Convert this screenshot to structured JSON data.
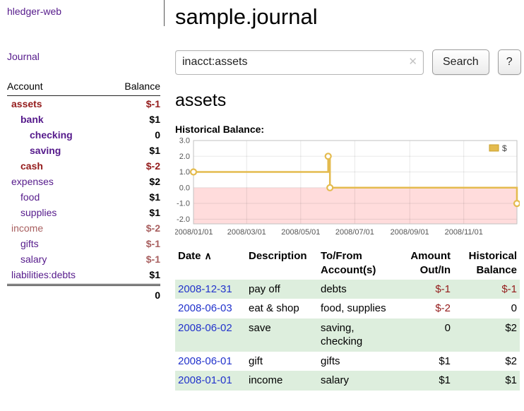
{
  "colors": {
    "link_purple": "#551a8b",
    "negative_strong": "#941b1b",
    "negative_soft": "#a85f5f",
    "date_blue": "#2233cc",
    "row_stripe_green": "#ddeedd",
    "chart_line": "#e4bb4e",
    "chart_line_border": "#c9a22e",
    "chart_negative_region": "#ffdcdc"
  },
  "sidebar": {
    "app_title": "hledger-web",
    "journal_link": "Journal",
    "header": {
      "account": "Account",
      "balance": "Balance"
    },
    "accounts": [
      {
        "name": "assets",
        "balance": "$-1",
        "depth": 0,
        "bold": true,
        "name_color": "negative_strong",
        "balance_color": "negative_strong"
      },
      {
        "name": "bank",
        "balance": "$1",
        "depth": 1,
        "bold": true,
        "name_color": "purple",
        "balance_color": "default"
      },
      {
        "name": "checking",
        "balance": "0",
        "depth": 2,
        "bold": true,
        "name_color": "purple",
        "balance_color": "default"
      },
      {
        "name": "saving",
        "balance": "$1",
        "depth": 2,
        "bold": true,
        "name_color": "purple",
        "balance_color": "default"
      },
      {
        "name": "cash",
        "balance": "$-2",
        "depth": 1,
        "bold": true,
        "name_color": "negative_strong",
        "balance_color": "negative_strong"
      },
      {
        "name": "expenses",
        "balance": "$2",
        "depth": 0,
        "bold": false,
        "name_color": "purple",
        "balance_color": "default"
      },
      {
        "name": "food",
        "balance": "$1",
        "depth": 1,
        "bold": false,
        "name_color": "purple",
        "balance_color": "default"
      },
      {
        "name": "supplies",
        "balance": "$1",
        "depth": 1,
        "bold": false,
        "name_color": "purple",
        "balance_color": "default"
      },
      {
        "name": "income",
        "balance": "$-2",
        "depth": 0,
        "bold": false,
        "name_color": "negative_soft",
        "balance_color": "negative_soft"
      },
      {
        "name": "gifts",
        "balance": "$-1",
        "depth": 1,
        "bold": false,
        "name_color": "purple",
        "balance_color": "negative_soft"
      },
      {
        "name": "salary",
        "balance": "$-1",
        "depth": 1,
        "bold": false,
        "name_color": "purple",
        "balance_color": "negative_soft"
      },
      {
        "name": "liabilities:debts",
        "balance": "$1",
        "depth": 0,
        "bold": false,
        "name_color": "purple",
        "balance_color": "default"
      }
    ],
    "total": "0"
  },
  "main": {
    "title": "sample.journal",
    "search": {
      "value": "inacct:assets",
      "clear_icon": "✕",
      "button_label": "Search",
      "help_label": "?"
    },
    "account_heading": "assets",
    "chart_title": "Historical Balance:"
  },
  "chart_data": {
    "type": "line",
    "step": true,
    "title": "Historical Balance",
    "series": [
      {
        "name": "$",
        "points": [
          [
            "2008-01-01",
            1
          ],
          [
            "2008-06-01",
            2
          ],
          [
            "2008-06-03",
            0
          ],
          [
            "2008-12-31",
            -1
          ]
        ]
      }
    ],
    "y_ticks": [
      "3.0",
      "2.0",
      "1.0",
      "0.0",
      "-1.0",
      "-2.0"
    ],
    "x_ticks": [
      "2008/01/01",
      "2008/03/01",
      "2008/05/01",
      "2008/07/01",
      "2008/09/01",
      "2008/11/01"
    ],
    "ylim": [
      -2.3,
      3.0
    ],
    "x_range": [
      "2008-01-01",
      "2008-12-31"
    ],
    "legend": {
      "label": "$",
      "position": "top-right"
    },
    "negative_region_below": 0,
    "grid": true
  },
  "table": {
    "sort_icon": "∧",
    "headers": [
      "Date",
      "Description",
      "To/From Account(s)",
      "Amount Out/In",
      "Historical Balance"
    ],
    "rows": [
      {
        "date": "2008-12-31",
        "description": "pay off",
        "accounts": "debts",
        "amount": "$-1",
        "balance": "$-1"
      },
      {
        "date": "2008-06-03",
        "description": "eat & shop",
        "accounts": "food, supplies",
        "amount": "$-2",
        "balance": "0"
      },
      {
        "date": "2008-06-02",
        "description": "save",
        "accounts": "saving, checking",
        "amount": "0",
        "balance": "$2"
      },
      {
        "date": "2008-06-01",
        "description": "gift",
        "accounts": "gifts",
        "amount": "$1",
        "balance": "$2"
      },
      {
        "date": "2008-01-01",
        "description": "income",
        "accounts": "salary",
        "amount": "$1",
        "balance": "$1"
      }
    ]
  }
}
